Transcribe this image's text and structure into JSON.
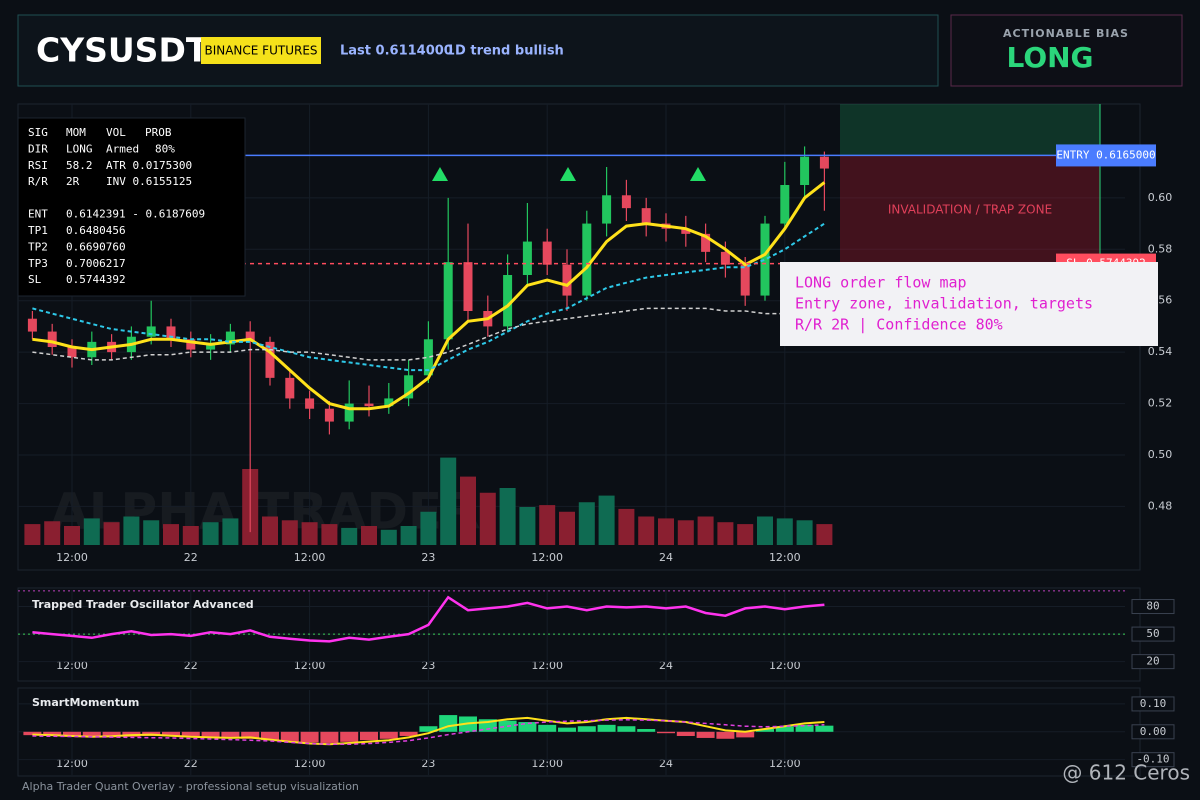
{
  "header": {
    "symbol": "CYSUSDT",
    "exchange": "BINANCE FUTURES",
    "last": "Last 0.6114000",
    "trend": "1D trend bullish"
  },
  "bias": {
    "label": "ACTIONABLE BIAS",
    "value": "LONG"
  },
  "stats_panel": {
    "rows": [
      [
        "SIG",
        "MOM",
        "VOL",
        "PROB"
      ],
      [
        "DIR",
        "LONG",
        "Armed",
        "80%"
      ],
      [
        "RSI",
        "58.2",
        "ATR 0.0175300"
      ],
      [
        "R/R",
        "2R",
        "INV 0.6155125"
      ],
      [
        "ENT",
        "0.6142391 - 0.6187609"
      ],
      [
        "TP1",
        "0.6480456"
      ],
      [
        "TP2",
        "0.6690760"
      ],
      [
        "TP3",
        "0.7006217"
      ],
      [
        "SL",
        "0.5744392"
      ]
    ]
  },
  "callout": {
    "lines": [
      "LONG order flow map",
      "Entry zone, invalidation, targets",
      "R/R 2R | Confidence 80%"
    ]
  },
  "watermark": "ALPHA TRADER",
  "footer": "Alpha Trader Quant Overlay - professional setup visualization",
  "credit": "@ 612 Ceros",
  "chart_data": [
    {
      "type": "candlestick",
      "categories": [
        null,
        null,
        "12:00",
        null,
        null,
        null,
        null,
        null,
        "22",
        null,
        null,
        null,
        null,
        null,
        "12:00",
        null,
        null,
        null,
        null,
        null,
        "23",
        null,
        null,
        null,
        null,
        null,
        "12:00",
        null,
        null,
        null,
        null,
        null,
        "24",
        null,
        null,
        null,
        null,
        null,
        "12:00",
        null,
        null
      ],
      "open": [
        0.553,
        0.548,
        0.542,
        0.538,
        0.544,
        0.54,
        0.546,
        0.55,
        0.545,
        0.541,
        0.543,
        0.548,
        0.544,
        0.53,
        0.522,
        0.518,
        0.513,
        0.52,
        0.519,
        0.522,
        0.531,
        0.545,
        0.575,
        0.556,
        0.55,
        0.57,
        0.583,
        0.574,
        0.562,
        0.59,
        0.601,
        0.596,
        0.59,
        0.588,
        0.586,
        0.579,
        0.574,
        0.562,
        0.59,
        0.605,
        0.616
      ],
      "high": [
        0.556,
        0.551,
        0.545,
        0.548,
        0.547,
        0.55,
        0.56,
        0.553,
        0.548,
        0.547,
        0.551,
        0.552,
        0.546,
        0.533,
        0.525,
        0.521,
        0.529,
        0.527,
        0.528,
        0.537,
        0.552,
        0.6,
        0.59,
        0.562,
        0.578,
        0.598,
        0.588,
        0.58,
        0.595,
        0.612,
        0.607,
        0.6,
        0.594,
        0.593,
        0.59,
        0.583,
        0.577,
        0.593,
        0.614,
        0.62,
        0.618
      ],
      "low": [
        0.545,
        0.539,
        0.534,
        0.535,
        0.537,
        0.537,
        0.543,
        0.542,
        0.538,
        0.537,
        0.54,
        0.47,
        0.527,
        0.518,
        0.514,
        0.508,
        0.51,
        0.515,
        0.516,
        0.519,
        0.528,
        0.541,
        0.552,
        0.546,
        0.548,
        0.566,
        0.57,
        0.556,
        0.56,
        0.585,
        0.591,
        0.585,
        0.583,
        0.581,
        0.575,
        0.569,
        0.558,
        0.56,
        0.588,
        0.6,
        0.595
      ],
      "close": [
        0.548,
        0.542,
        0.538,
        0.544,
        0.54,
        0.546,
        0.55,
        0.545,
        0.541,
        0.543,
        0.548,
        0.544,
        0.53,
        0.522,
        0.518,
        0.513,
        0.52,
        0.519,
        0.522,
        0.531,
        0.545,
        0.575,
        0.556,
        0.55,
        0.57,
        0.583,
        0.574,
        0.562,
        0.59,
        0.601,
        0.596,
        0.59,
        0.588,
        0.586,
        0.579,
        0.574,
        0.562,
        0.59,
        0.605,
        0.616,
        0.6114
      ],
      "volume": [
        22,
        25,
        20,
        28,
        24,
        30,
        26,
        22,
        20,
        24,
        28,
        80,
        30,
        26,
        24,
        22,
        18,
        20,
        16,
        20,
        35,
        92,
        72,
        55,
        60,
        40,
        42,
        35,
        45,
        52,
        38,
        30,
        28,
        26,
        30,
        24,
        22,
        30,
        28,
        26,
        22
      ],
      "up_color": "#22c55e",
      "down_color": "#e5485d",
      "volume_up_color": "#0f6b52",
      "volume_down_color": "#8a1f30",
      "lines": [
        {
          "color": "#ffe11a",
          "dash": false,
          "width": 3,
          "values": [
            0.545,
            0.544,
            0.542,
            0.541,
            0.542,
            0.543,
            0.545,
            0.545,
            0.544,
            0.543,
            0.544,
            0.545,
            0.54,
            0.533,
            0.526,
            0.52,
            0.518,
            0.518,
            0.519,
            0.524,
            0.53,
            0.545,
            0.552,
            0.553,
            0.558,
            0.566,
            0.568,
            0.566,
            0.573,
            0.583,
            0.589,
            0.59,
            0.589,
            0.588,
            0.585,
            0.58,
            0.574,
            0.578,
            0.588,
            0.6,
            0.606
          ]
        },
        {
          "color": "#2ec8e8",
          "dash": true,
          "width": 2,
          "values": [
            0.557,
            0.555,
            0.553,
            0.551,
            0.549,
            0.548,
            0.547,
            0.546,
            0.545,
            0.545,
            0.544,
            0.544,
            0.542,
            0.54,
            0.538,
            0.537,
            0.536,
            0.535,
            0.534,
            0.533,
            0.533,
            0.537,
            0.541,
            0.544,
            0.548,
            0.552,
            0.555,
            0.557,
            0.561,
            0.565,
            0.567,
            0.569,
            0.57,
            0.571,
            0.572,
            0.573,
            0.573,
            0.576,
            0.58,
            0.585,
            0.59
          ]
        },
        {
          "color": "#d0d0d0",
          "dash": true,
          "width": 1.5,
          "values": [
            0.54,
            0.539,
            0.538,
            0.537,
            0.537,
            0.538,
            0.539,
            0.539,
            0.54,
            0.54,
            0.54,
            0.541,
            0.541,
            0.54,
            0.54,
            0.539,
            0.538,
            0.537,
            0.537,
            0.537,
            0.538,
            0.54,
            0.543,
            0.546,
            0.549,
            0.551,
            0.552,
            0.553,
            0.554,
            0.555,
            0.556,
            0.557,
            0.557,
            0.557,
            0.557,
            0.556,
            0.556,
            0.555,
            0.555,
            0.555,
            0.555
          ]
        }
      ],
      "entry": 0.6165,
      "entry_label": "ENTRY 0.6165000",
      "entry_color": "#4a7cff",
      "sl": 0.5744392,
      "sl_label": "SL 0.5744392",
      "sl_color": "#ff4d5e",
      "zone_label": "INVALIDATION / TRAP ZONE",
      "ylim": [
        0.465,
        0.6365
      ],
      "yticks": [
        0.48,
        {
          "value": 0.5,
          "label": "0.50"
        },
        0.52,
        0.54,
        0.56,
        0.58,
        {
          "value": 0.6,
          "label": "0.60"
        }
      ],
      "grid": true
    },
    {
      "type": "line",
      "title": "Trapped Trader Oscillator Advanced",
      "color": "#ff33ee",
      "values": [
        52,
        50,
        48,
        46,
        50,
        53,
        49,
        50,
        48,
        52,
        50,
        54,
        47,
        45,
        43,
        42,
        46,
        44,
        47,
        50,
        60,
        90,
        76,
        78,
        80,
        84,
        78,
        80,
        76,
        80,
        79,
        80,
        78,
        80,
        73,
        70,
        78,
        80,
        77,
        80,
        82
      ],
      "hlines": [
        {
          "value": 97,
          "color": "#c040c0"
        },
        {
          "value": 50,
          "color": "#3ecf5a"
        }
      ],
      "ylim": [
        0,
        98
      ],
      "yticks": [
        20,
        50,
        80
      ],
      "grid": true
    },
    {
      "type": "bar",
      "title": "SmartMomentum",
      "positive_color": "#1fd67a",
      "negative_color": "#e5485d",
      "values": [
        -0.012,
        -0.015,
        -0.018,
        -0.02,
        -0.02,
        -0.018,
        -0.015,
        -0.016,
        -0.018,
        -0.02,
        -0.022,
        -0.025,
        -0.03,
        -0.035,
        -0.038,
        -0.04,
        -0.036,
        -0.03,
        -0.025,
        -0.015,
        0.02,
        0.06,
        0.055,
        0.045,
        0.04,
        0.035,
        0.025,
        0.015,
        0.02,
        0.025,
        0.02,
        0.01,
        -0.005,
        -0.015,
        -0.022,
        -0.025,
        -0.02,
        0.01,
        0.02,
        0.025,
        0.022
      ],
      "lines": [
        {
          "color": "#ffe11a",
          "dash": false,
          "width": 2,
          "values": [
            -0.01,
            -0.012,
            -0.015,
            -0.018,
            -0.016,
            -0.012,
            -0.01,
            -0.014,
            -0.018,
            -0.02,
            -0.022,
            -0.02,
            -0.028,
            -0.036,
            -0.042,
            -0.045,
            -0.04,
            -0.035,
            -0.03,
            -0.02,
            -0.005,
            0.02,
            0.03,
            0.035,
            0.045,
            0.05,
            0.04,
            0.03,
            0.035,
            0.045,
            0.05,
            0.045,
            0.04,
            0.035,
            0.02,
            0.005,
            0.0,
            0.01,
            0.02,
            0.03,
            0.035
          ]
        },
        {
          "color": "#e040e0",
          "dash": true,
          "width": 1.5,
          "values": [
            -0.015,
            -0.016,
            -0.017,
            -0.018,
            -0.019,
            -0.02,
            -0.021,
            -0.022,
            -0.024,
            -0.026,
            -0.028,
            -0.03,
            -0.033,
            -0.038,
            -0.042,
            -0.045,
            -0.045,
            -0.042,
            -0.038,
            -0.032,
            -0.022,
            -0.01,
            0.0,
            0.01,
            0.02,
            0.03,
            0.035,
            0.038,
            0.04,
            0.042,
            0.043,
            0.042,
            0.04,
            0.035,
            0.03,
            0.025,
            0.02,
            0.018,
            0.02,
            0.022,
            0.025
          ]
        }
      ],
      "ylim": [
        -0.155,
        0.15
      ],
      "yticks": [
        {
          "value": -0.1,
          "label": "-0.10"
        },
        {
          "value": 0,
          "label": "0.00"
        },
        {
          "value": 0.1,
          "label": "0.10"
        }
      ],
      "grid": true
    }
  ]
}
